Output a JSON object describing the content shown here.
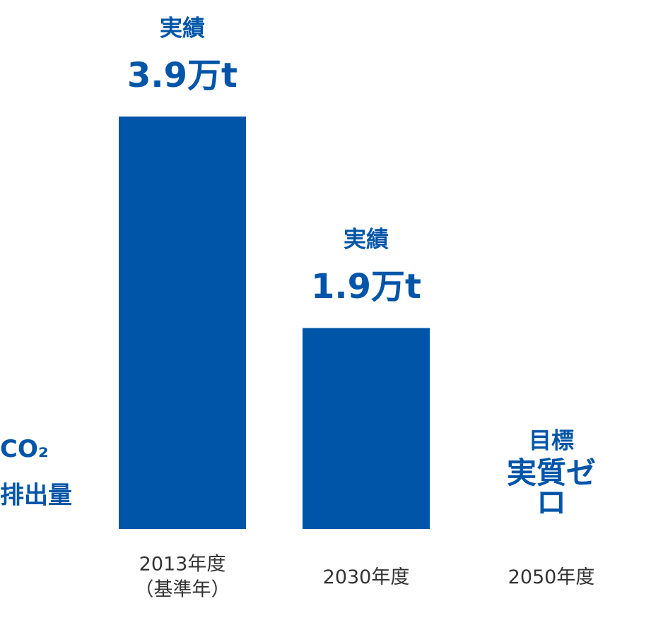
{
  "chart_data": {
    "type": "bar",
    "ylabel": [
      "CO₂",
      "排出量"
    ],
    "categories": [
      "2013年度\n（基準年）",
      "2030年度",
      "2050年度"
    ],
    "values": [
      3.9,
      1.9,
      0
    ],
    "value_labels": [
      "3.9万t",
      "1.9万t",
      "実質ゼロ"
    ],
    "value_captions": [
      "実績",
      "実績",
      "目標"
    ],
    "color": "#0055a8"
  }
}
